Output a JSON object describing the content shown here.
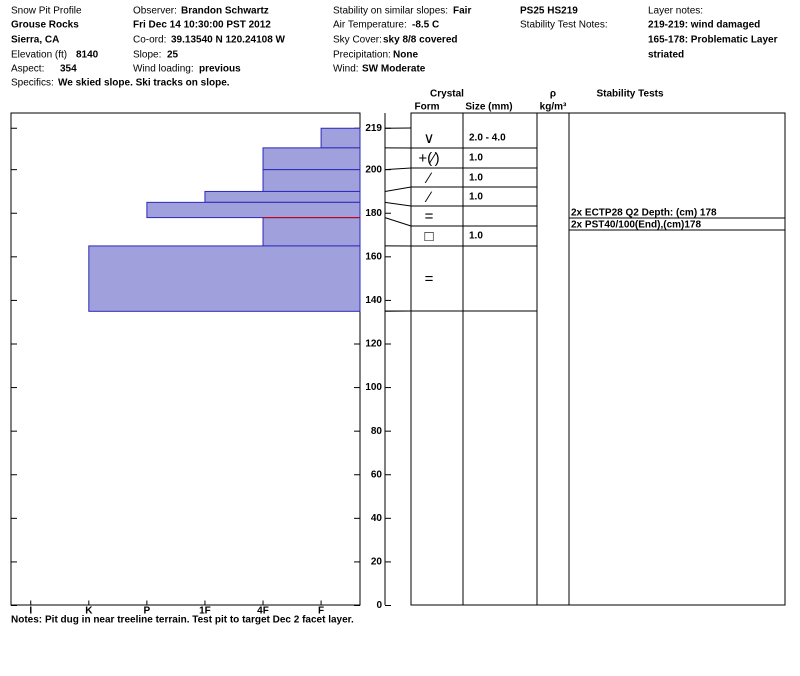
{
  "header": {
    "title": "Snow Pit Profile",
    "location": "Grouse Rocks",
    "region": "Sierra, CA",
    "elevation_label": "Elevation (ft)",
    "elevation": "8140",
    "aspect_label": "Aspect:",
    "aspect": "354",
    "specifics_label": "Specifics:",
    "specifics": "We skied slope. Ski tracks on slope.",
    "observer_label": "Observer:",
    "observer": "Brandon Schwartz",
    "date": "Fri Dec 14 10:30:00 PST 2012",
    "coord_label": "Co-ord:",
    "coord": "39.13540 N 120.24108 W",
    "slope_label": "Slope:",
    "slope": "25",
    "wind_loading_label": "Wind loading:",
    "wind_loading": "previous",
    "stability_label": "Stability on similar slopes:",
    "stability": "Fair",
    "air_temp_label": "Air Temperature:",
    "air_temp": "-8.5 C",
    "sky_label": "Sky Cover:",
    "sky": "sky 8/8 covered",
    "precip_label": "Precipitation:",
    "precip": "None",
    "wind_label": "Wind:",
    "wind": "SW Moderate",
    "ps_hs": "PS25 HS219",
    "test_notes_label": "Stability Test Notes:",
    "layer_notes_label": "Layer notes:",
    "layer_notes": [
      "219-219: wind damaged",
      "165-178: Problematic Layer",
      "striated"
    ]
  },
  "columns": {
    "crystal": "Crystal",
    "form": "Form",
    "size": "Size (mm)",
    "rho": "ρ",
    "rho_unit": "kg/m³",
    "tests": "Stability Tests"
  },
  "stability_tests": [
    "2x ECTP28 Q2 Depth: (cm) 178",
    "2x PST40/100(End),(cm)178"
  ],
  "notes_label": "Notes:",
  "notes": "Pit dug in near treeline terrain. Test pit to target Dec 2 facet layer.",
  "chart_data": {
    "type": "bar",
    "orientation": "horizontal",
    "color": "#a0a0dc",
    "edge_color": "#2a2ab8",
    "critical_color": "#d00000",
    "layers": {
      "top": [
        219,
        210,
        200,
        190,
        185,
        178,
        165
      ],
      "bottom": [
        210,
        200,
        190,
        185,
        178,
        165,
        135
      ],
      "values": [
        1,
        2,
        2,
        3,
        4,
        2,
        5
      ],
      "forms": [
        "∨",
        "+(∕)",
        "∕",
        "∕",
        "=",
        "□",
        "="
      ],
      "sizes": [
        "2.0 - 4.0",
        "1.0",
        "1.0",
        "1.0",
        null,
        "1.0",
        null
      ]
    },
    "critical_layer": 178,
    "ylim": [
      0,
      226
    ],
    "yticks": [
      0,
      20,
      40,
      60,
      80,
      100,
      120,
      140,
      160,
      180,
      200,
      219
    ],
    "xlim": [
      6.34,
      0.33
    ],
    "xticks": [
      {
        "value": 6,
        "label": "I"
      },
      {
        "value": 5,
        "label": "K"
      },
      {
        "value": 4,
        "label": "P"
      },
      {
        "value": 3,
        "label": "1F"
      },
      {
        "value": 2,
        "label": "4F"
      },
      {
        "value": 1,
        "label": "F"
      }
    ]
  }
}
